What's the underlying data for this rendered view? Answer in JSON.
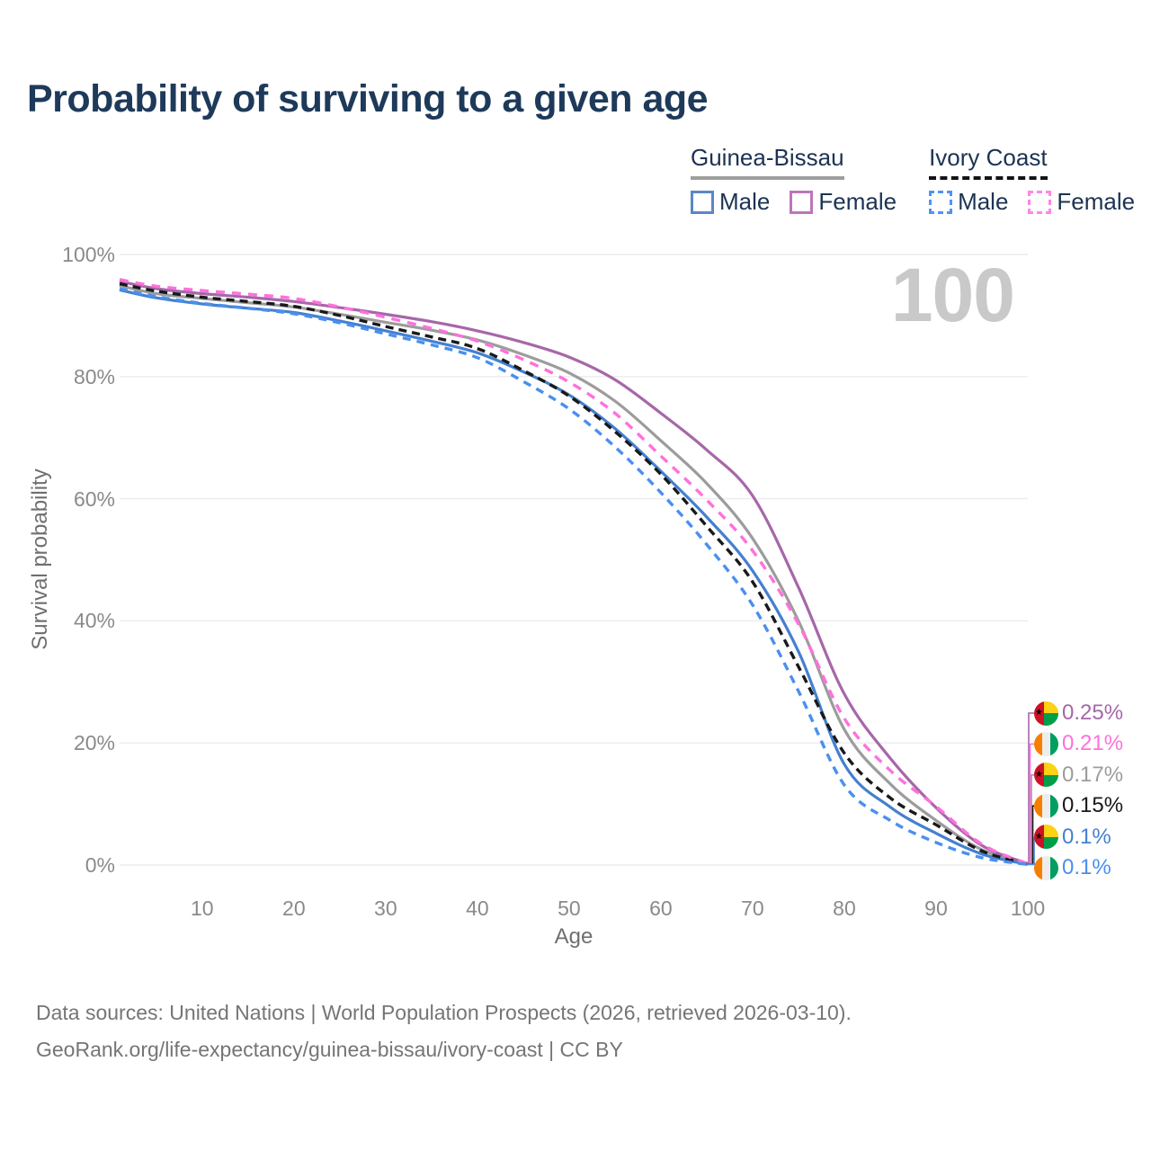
{
  "title": "Probability of surviving to a given age",
  "legend": {
    "groups": [
      {
        "name": "Guinea-Bissau",
        "line_style": "solid",
        "underline_color": "#9e9e9e",
        "items": [
          {
            "label": "Male",
            "swatch_color": "#5b87c7",
            "dashed": false
          },
          {
            "label": "Female",
            "swatch_color": "#bd75bb",
            "dashed": false
          }
        ]
      },
      {
        "name": "Ivory Coast",
        "line_style": "dashed",
        "underline_color": "#141414",
        "items": [
          {
            "label": "Male",
            "swatch_color": "#4e95f2",
            "dashed": true
          },
          {
            "label": "Female",
            "swatch_color": "#ff86e3",
            "dashed": true
          }
        ]
      }
    ]
  },
  "watermark": "100",
  "chart_data": {
    "type": "line",
    "title": "Probability of surviving to a given age",
    "xlabel": "Age",
    "ylabel": "Survival probability",
    "xlim": [
      1,
      100
    ],
    "ylim": [
      0,
      100
    ],
    "x_ticks": [
      10,
      20,
      30,
      40,
      50,
      60,
      70,
      80,
      90,
      100
    ],
    "y_ticks": [
      0,
      20,
      40,
      60,
      80,
      100
    ],
    "y_tick_suffix": "%",
    "grid": "horizontal",
    "legend_position": "top-right",
    "x": [
      1,
      5,
      10,
      15,
      20,
      25,
      30,
      35,
      40,
      45,
      50,
      55,
      60,
      65,
      70,
      75,
      80,
      85,
      90,
      95,
      100
    ],
    "series": [
      {
        "name": "Guinea-Bissau Total",
        "country": "Guinea-Bissau",
        "sex": "Total",
        "color": "#9c9c9c",
        "dash": "solid",
        "flag_icon": "guinea-bissau-flag-icon",
        "end_label": "0.17%",
        "values": [
          94.9,
          93.6,
          92.8,
          92.1,
          91.4,
          90.2,
          88.9,
          87.6,
          86.0,
          83.6,
          80.6,
          76.0,
          69.5,
          62.5,
          53.5,
          40.0,
          22.2,
          13.3,
          7.3,
          2.5,
          0.17
        ]
      },
      {
        "name": "Guinea-Bissau Female",
        "country": "Guinea-Bissau",
        "sex": "Female",
        "color": "#a667a9",
        "dash": "solid",
        "flag_icon": "guinea-bissau-flag-icon",
        "end_label": "0.25%",
        "values": [
          95.6,
          94.4,
          93.6,
          93.0,
          92.3,
          91.3,
          90.2,
          89.0,
          87.5,
          85.6,
          83.2,
          79.5,
          74.0,
          68.0,
          60.5,
          45.5,
          28.0,
          17.5,
          9.4,
          3.2,
          0.25
        ]
      },
      {
        "name": "Guinea-Bissau Male",
        "country": "Guinea-Bissau",
        "sex": "Male",
        "color": "#4480cf",
        "dash": "solid",
        "flag_icon": "guinea-bissau-flag-icon",
        "end_label": "0.1%",
        "values": [
          94.2,
          92.9,
          91.9,
          91.2,
          90.5,
          89.1,
          87.5,
          85.8,
          83.9,
          80.8,
          77.0,
          71.5,
          64.5,
          57.0,
          48.2,
          35.0,
          16.5,
          9.5,
          5.2,
          1.8,
          0.1
        ]
      },
      {
        "name": "Ivory Coast Total",
        "country": "Ivory Coast",
        "sex": "Total",
        "color": "#191919",
        "dash": "dashed",
        "flag_icon": "ivory-coast-flag-icon",
        "end_label": "0.15%",
        "values": [
          95.2,
          94.0,
          93.0,
          92.3,
          91.5,
          90.0,
          88.2,
          86.5,
          84.6,
          81.0,
          76.8,
          71.0,
          64.0,
          55.5,
          46.4,
          32.5,
          18.3,
          11.0,
          6.6,
          2.3,
          0.15
        ]
      },
      {
        "name": "Ivory Coast Female",
        "country": "Ivory Coast",
        "sex": "Female",
        "color": "#ff70dd",
        "dash": "dashed",
        "flag_icon": "ivory-coast-flag-icon",
        "end_label": "0.21%",
        "values": [
          95.9,
          94.8,
          94.1,
          93.5,
          92.8,
          91.4,
          89.7,
          87.9,
          85.8,
          82.8,
          79.1,
          74.0,
          67.0,
          59.8,
          51.5,
          39.5,
          24.0,
          15.5,
          9.6,
          3.4,
          0.21
        ]
      },
      {
        "name": "Ivory Coast Male",
        "country": "Ivory Coast",
        "sex": "Male",
        "color": "#4a8ff0",
        "dash": "dashed",
        "flag_icon": "ivory-coast-flag-icon",
        "end_label": "0.1%",
        "values": [
          94.4,
          93.1,
          92.0,
          91.2,
          90.3,
          88.8,
          87.0,
          85.2,
          83.1,
          79.2,
          74.7,
          68.5,
          61.0,
          52.5,
          42.6,
          28.5,
          13.1,
          7.3,
          3.7,
          1.2,
          0.1
        ]
      }
    ]
  },
  "footer": {
    "line1": "Data sources: United Nations | World Population Prospects (2026, retrieved 2026-03-10).",
    "line2": "GeoRank.org/life-expectancy/guinea-bissau/ivory-coast | CC BY"
  }
}
